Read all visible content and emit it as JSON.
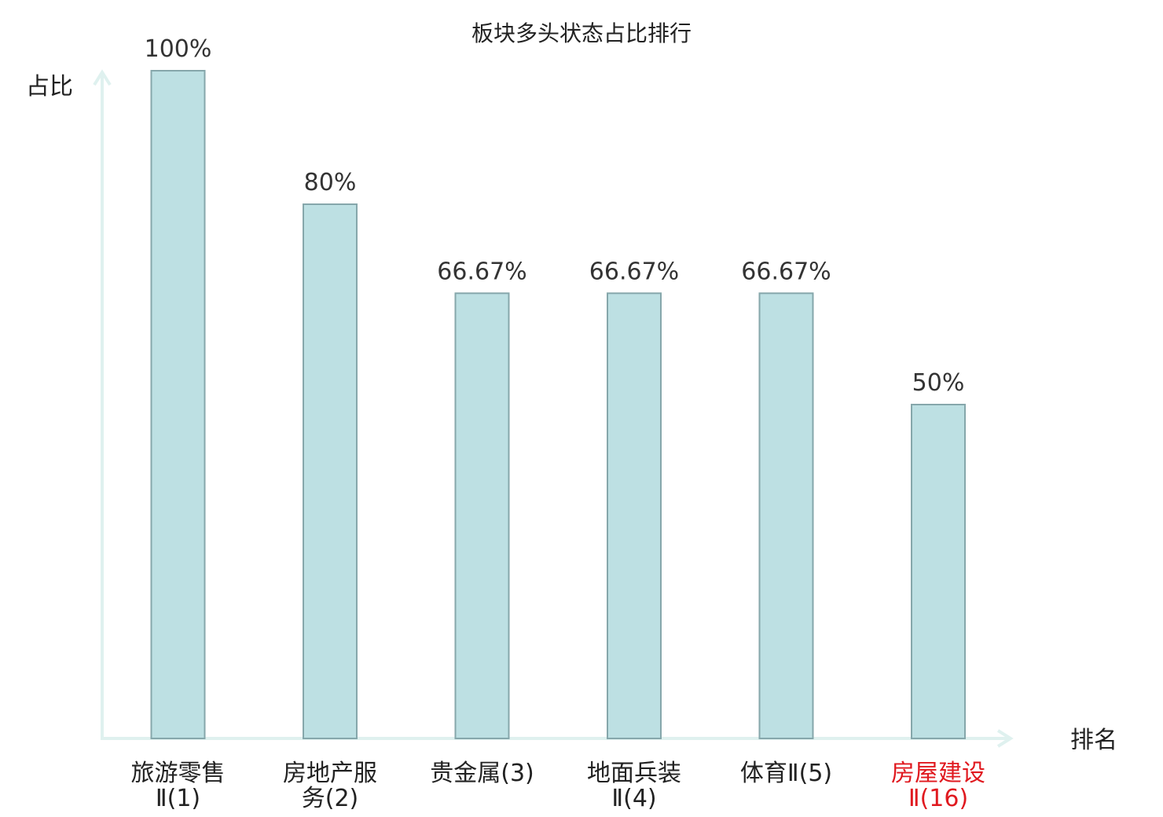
{
  "chart_data": {
    "type": "bar",
    "title": "板块多头状态占比排行",
    "ylabel": "占比",
    "xlabel": "排名",
    "ylim": [
      0,
      100
    ],
    "grid": false,
    "categories": [
      [
        "旅游零售",
        "Ⅱ(1)"
      ],
      [
        "房地产服",
        "务(2)"
      ],
      [
        "贵金属(3)"
      ],
      [
        "地面兵装",
        "Ⅱ(4)"
      ],
      [
        "体育Ⅱ(5)"
      ],
      [
        "房屋建设",
        "Ⅱ(16)"
      ]
    ],
    "values": [
      100,
      80,
      66.67,
      66.67,
      66.67,
      50
    ],
    "value_labels": [
      "100%",
      "80%",
      "66.67%",
      "66.67%",
      "66.67%",
      "50%"
    ],
    "highlight_index": 5,
    "colors": {
      "bar_fill": "#bde0e3",
      "bar_stroke": "#86a7ab",
      "axis": "#dff1ef",
      "text": "#333333",
      "highlight_text": "#e0191f"
    }
  }
}
